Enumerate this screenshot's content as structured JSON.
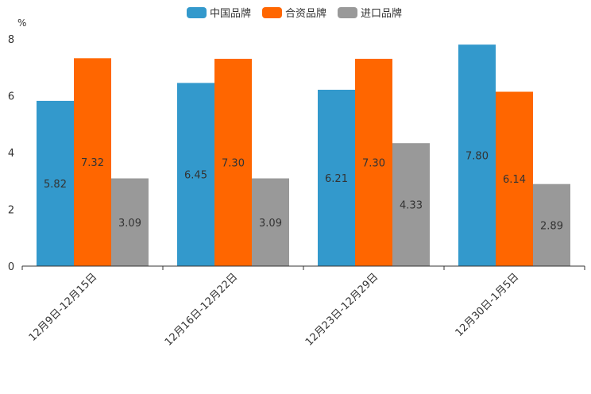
{
  "chart_data": {
    "type": "bar",
    "unit": "%",
    "categories": [
      "12月9日-12月15日",
      "12月16日-12月22日",
      "12月23日-12月29日",
      "12月30日-1月5日"
    ],
    "series": [
      {
        "name": "中国品牌",
        "color": "#3399cc",
        "values": [
          5.82,
          6.45,
          6.21,
          7.8
        ],
        "labels": [
          "5.82",
          "6.45",
          "6.21",
          "7.80"
        ]
      },
      {
        "name": "合资品牌",
        "color": "#ff6600",
        "values": [
          7.32,
          7.3,
          7.3,
          6.14
        ],
        "labels": [
          "7.32",
          "7.30",
          "7.30",
          "6.14"
        ]
      },
      {
        "name": "进口品牌",
        "color": "#999999",
        "values": [
          3.09,
          3.09,
          4.33,
          2.89
        ],
        "labels": [
          "3.09",
          "3.09",
          "4.33",
          "2.89"
        ]
      }
    ],
    "ylim": [
      0,
      8
    ],
    "yticks": [
      "0",
      "2",
      "4",
      "6",
      "8"
    ],
    "legend_position": "top-center"
  }
}
